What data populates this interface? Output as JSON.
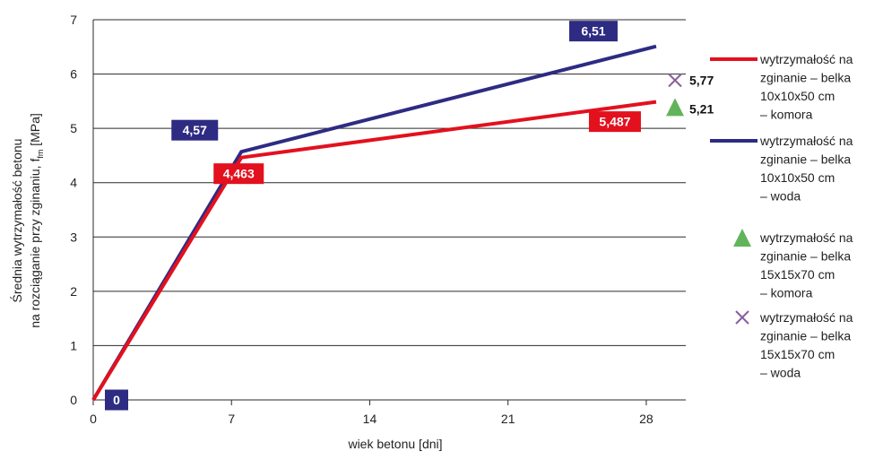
{
  "chart_data": {
    "type": "line",
    "xlabel": "wiek betonu [dni]",
    "ylabel_line1": "Średnia wytrzymałość betonu",
    "ylabel_line2_prefix": "na rozciąganie przy zginaniu, f",
    "ylabel_line2_sub": "fm",
    "ylabel_line2_suffix": " [MPa]",
    "xlim": [
      0,
      30
    ],
    "ylim": [
      0,
      7
    ],
    "x_ticks": [
      0,
      7,
      14,
      21,
      28
    ],
    "x_tick_labels": [
      "0",
      "7",
      "14",
      "21",
      "28"
    ],
    "y_ticks": [
      0,
      1,
      2,
      3,
      4,
      5,
      6,
      7
    ],
    "y_tick_labels": [
      "0",
      "1",
      "2",
      "3",
      "4",
      "5",
      "6",
      "7"
    ],
    "grid": "horizontal",
    "legend_position": "right",
    "series": [
      {
        "name_lines": [
          "wytrzymałość na",
          "zginanie – belka",
          "10x10x50 cm",
          "– komora"
        ],
        "marker": "line",
        "color": "#e3101e",
        "x": [
          0,
          7.5,
          28.5
        ],
        "y": [
          0,
          4.463,
          5.487
        ],
        "labels": [
          {
            "text": "4,463",
            "x": 7.5,
            "y": 4.463,
            "box_color": "#e3101e"
          },
          {
            "text": "5,487",
            "x": 28.5,
            "y": 5.487,
            "box_color": "#e3101e"
          }
        ]
      },
      {
        "name_lines": [
          "wytrzymałość na",
          "zginanie – belka",
          "10x10x50 cm",
          "– woda"
        ],
        "marker": "line",
        "color": "#2e2b83",
        "x": [
          0,
          7.5,
          28.5
        ],
        "y": [
          0,
          4.57,
          6.51
        ],
        "labels": [
          {
            "text": "0",
            "x": 0,
            "y": 0,
            "box_color": "#2e2b83"
          },
          {
            "text": "4,57",
            "x": 7.5,
            "y": 4.57,
            "box_color": "#2e2b83"
          },
          {
            "text": "6,51",
            "x": 28.5,
            "y": 6.51,
            "box_color": "#2e2b83"
          }
        ]
      },
      {
        "name_lines": [
          "wytrzymałość na",
          "zginanie – belka",
          "15x15x70 cm",
          "– komora"
        ],
        "marker": "triangle",
        "color": "#62b45a",
        "x": [
          30
        ],
        "y": [
          5.21
        ],
        "labels": [
          {
            "text": "5,21",
            "x": 30,
            "y": 5.21
          }
        ]
      },
      {
        "name_lines": [
          "wytrzymałość na",
          "zginanie – belka",
          "15x15x70 cm",
          "– woda"
        ],
        "marker": "cross",
        "color": "#8a5f9e",
        "x": [
          30
        ],
        "y": [
          5.77
        ],
        "labels": [
          {
            "text": "5,77",
            "x": 30,
            "y": 5.77
          }
        ]
      }
    ]
  }
}
